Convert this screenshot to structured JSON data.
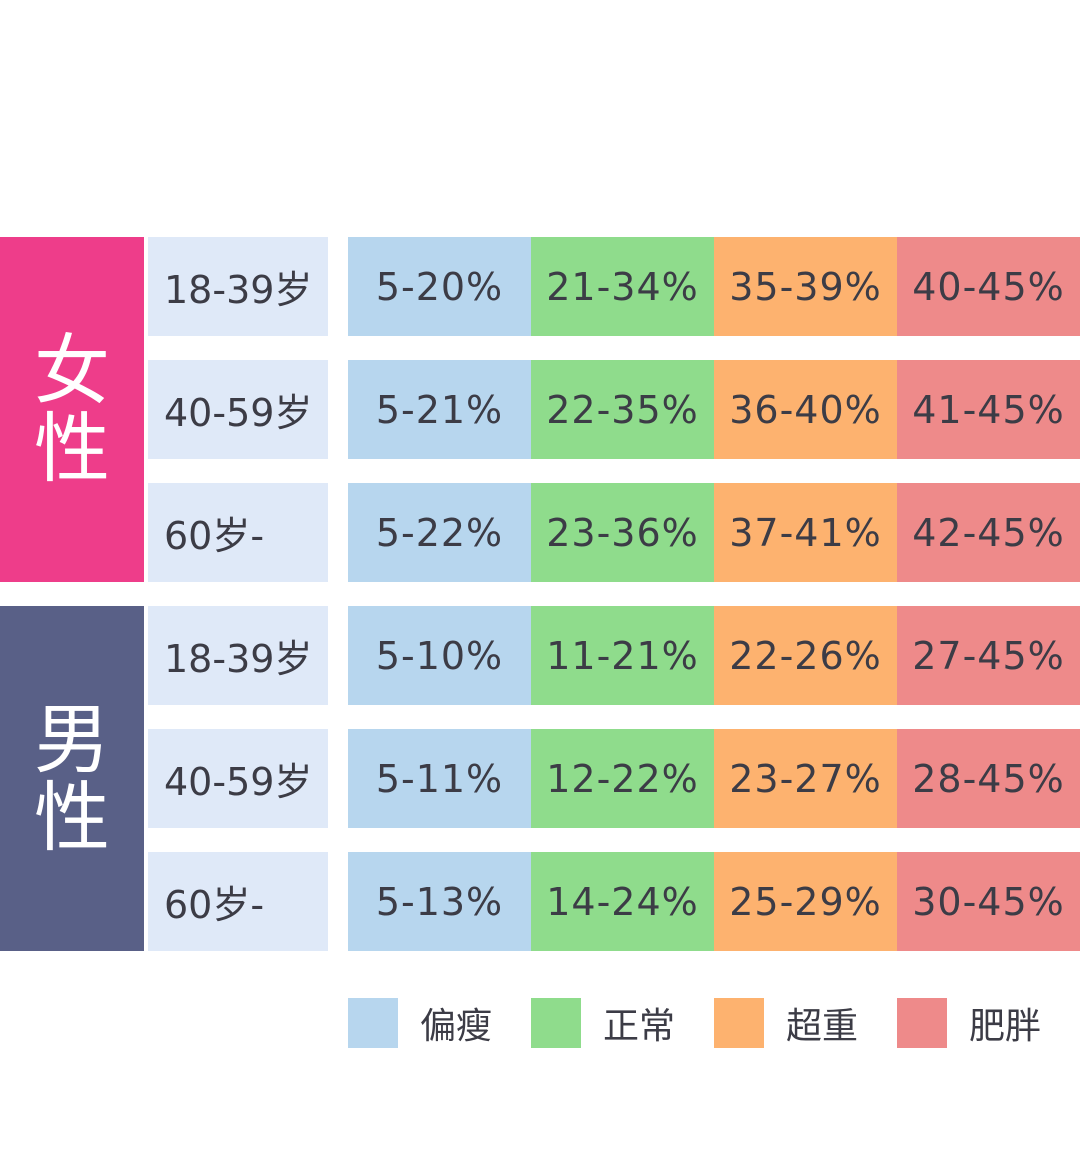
{
  "chart_data": {
    "type": "table",
    "categories": [
      "偏瘦",
      "正常",
      "超重",
      "肥胖"
    ],
    "colors": [
      "#b7d6ee",
      "#8fdc8c",
      "#fdb26f",
      "#ee8a8a"
    ],
    "groups": [
      {
        "label_chars": [
          "女",
          "性"
        ],
        "color": "#ee3d8a",
        "rows": [
          {
            "age": "18-39岁",
            "values": [
              "5-20%",
              "21-34%",
              "35-39%",
              "40-45%"
            ]
          },
          {
            "age": "40-59岁",
            "values": [
              "5-21%",
              "22-35%",
              "36-40%",
              "41-45%"
            ]
          },
          {
            "age": "60岁-",
            "values": [
              "5-22%",
              "23-36%",
              "37-41%",
              "42-45%"
            ]
          }
        ]
      },
      {
        "label_chars": [
          "男",
          "性"
        ],
        "color": "#596087",
        "rows": [
          {
            "age": "18-39岁",
            "values": [
              "5-10%",
              "11-21%",
              "22-26%",
              "27-45%"
            ]
          },
          {
            "age": "40-59岁",
            "values": [
              "5-11%",
              "12-22%",
              "23-27%",
              "28-45%"
            ]
          },
          {
            "age": "60岁-",
            "values": [
              "5-13%",
              "14-24%",
              "25-29%",
              "30-45%"
            ]
          }
        ]
      }
    ],
    "age_cell_color": "#dfe9f8"
  }
}
